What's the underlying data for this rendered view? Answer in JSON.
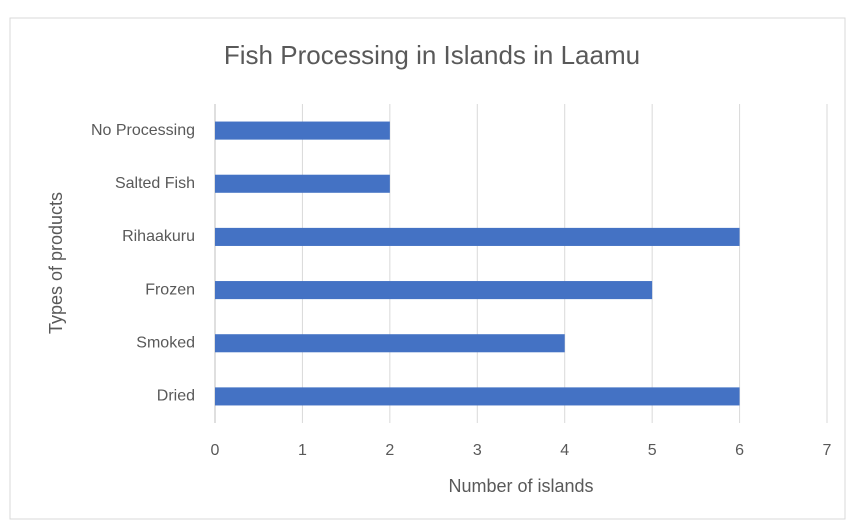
{
  "chart_data": {
    "type": "bar",
    "orientation": "horizontal",
    "title": "Fish Processing in Islands in Laamu",
    "x_label": "Number of islands",
    "y_label": "Types of products",
    "categories": [
      "No Processing",
      "Salted Fish",
      "Rihaakuru",
      "Frozen",
      "Smoked",
      "Dried"
    ],
    "values": [
      2,
      2,
      6,
      5,
      4,
      6
    ],
    "color": "#4472c4",
    "xlim": [
      0,
      7
    ],
    "xticks": [
      0,
      1,
      2,
      3,
      4,
      5,
      6,
      7
    ],
    "grid": true
  }
}
